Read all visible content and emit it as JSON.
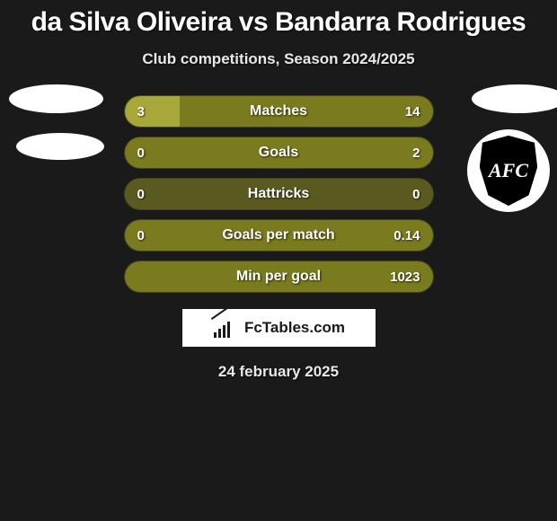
{
  "title": "da Silva Oliveira vs Bandarra Rodrigues",
  "subtitle": "Club competitions, Season 2024/2025",
  "date": "24 february 2025",
  "branding": "FcTables.com",
  "colors": {
    "background": "#1a1a1a",
    "olive": "#7a7a1e",
    "olive_light": "#a8a83a",
    "row_inactive": "#5a5a20",
    "text": "#ffffff"
  },
  "badges": {
    "shield_text": "AFC"
  },
  "stats": [
    {
      "label": "Matches",
      "left_value": "3",
      "right_value": "14",
      "left_pct": 18,
      "right_pct": 82,
      "left_color": "#a8a83a",
      "right_color": "#7a7a1e"
    },
    {
      "label": "Goals",
      "left_value": "0",
      "right_value": "2",
      "left_pct": 0,
      "right_pct": 100,
      "left_color": "#5a5a20",
      "right_color": "#7a7a1e"
    },
    {
      "label": "Hattricks",
      "left_value": "0",
      "right_value": "0",
      "left_pct": 0,
      "right_pct": 0,
      "left_color": "#5a5a20",
      "right_color": "#5a5a20"
    },
    {
      "label": "Goals per match",
      "left_value": "0",
      "right_value": "0.14",
      "left_pct": 0,
      "right_pct": 100,
      "left_color": "#5a5a20",
      "right_color": "#7a7a1e"
    },
    {
      "label": "Min per goal",
      "left_value": "",
      "right_value": "1023",
      "left_pct": 0,
      "right_pct": 100,
      "left_color": "#5a5a20",
      "right_color": "#7a7a1e"
    }
  ]
}
